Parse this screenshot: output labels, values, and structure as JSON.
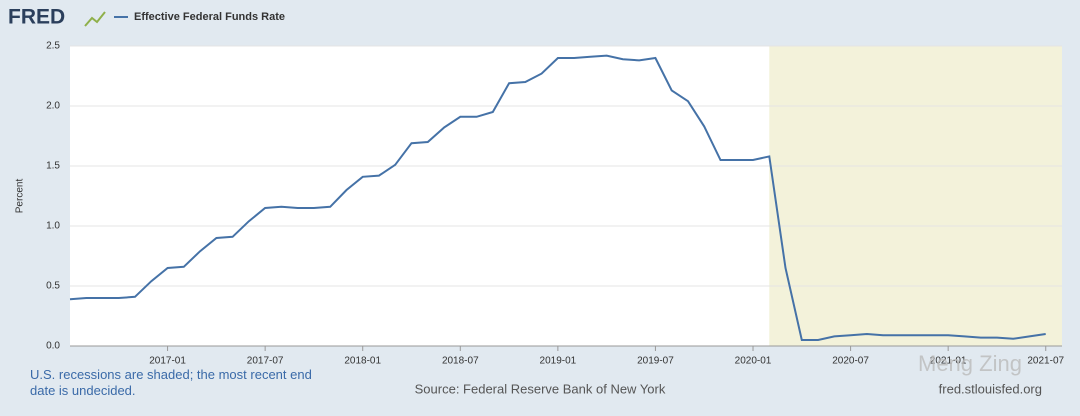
{
  "chart_data": {
    "type": "line",
    "logo": "FRED",
    "ylabel": "Percent",
    "note": "U.S. recessions are shaded; the most recent end date is undecided.",
    "source": "Source: Federal Reserve Bank of New York",
    "site": "fred.stlouisfed.org",
    "watermark": "Meng Zing",
    "x": [
      "2016-07",
      "2016-08",
      "2016-09",
      "2016-10",
      "2016-11",
      "2016-12",
      "2017-01",
      "2017-02",
      "2017-03",
      "2017-04",
      "2017-05",
      "2017-06",
      "2017-07",
      "2017-08",
      "2017-09",
      "2017-10",
      "2017-11",
      "2017-12",
      "2018-01",
      "2018-02",
      "2018-03",
      "2018-04",
      "2018-05",
      "2018-06",
      "2018-07",
      "2018-08",
      "2018-09",
      "2018-10",
      "2018-11",
      "2018-12",
      "2019-01",
      "2019-02",
      "2019-03",
      "2019-04",
      "2019-05",
      "2019-06",
      "2019-07",
      "2019-08",
      "2019-09",
      "2019-10",
      "2019-11",
      "2019-12",
      "2020-01",
      "2020-02",
      "2020-03",
      "2020-04",
      "2020-05",
      "2020-06",
      "2020-07",
      "2020-08",
      "2020-09",
      "2020-10",
      "2020-11",
      "2020-12",
      "2021-01",
      "2021-02",
      "2021-03",
      "2021-04",
      "2021-05",
      "2021-06",
      "2021-07"
    ],
    "series": [
      {
        "name": "Effective Federal Funds Rate",
        "color": "#4572a7",
        "values": [
          0.39,
          0.4,
          0.4,
          0.4,
          0.41,
          0.54,
          0.65,
          0.66,
          0.79,
          0.9,
          0.91,
          1.04,
          1.15,
          1.16,
          1.15,
          1.15,
          1.16,
          1.3,
          1.41,
          1.42,
          1.51,
          1.69,
          1.7,
          1.82,
          1.91,
          1.91,
          1.95,
          2.19,
          2.2,
          2.27,
          2.4,
          2.4,
          2.41,
          2.42,
          2.39,
          2.38,
          2.4,
          2.13,
          2.04,
          1.83,
          1.55,
          1.55,
          1.55,
          1.58,
          0.65,
          0.05,
          0.05,
          0.08,
          0.09,
          0.1,
          0.09,
          0.09,
          0.09,
          0.09,
          0.09,
          0.08,
          0.07,
          0.07,
          0.06,
          0.08,
          0.1
        ]
      }
    ],
    "xlim": [
      "2016-07",
      "2021-08"
    ],
    "xticks": [
      "2017-01",
      "2017-07",
      "2018-01",
      "2018-07",
      "2019-01",
      "2019-07",
      "2020-01",
      "2020-07",
      "2021-01",
      "2021-07"
    ],
    "ylim": [
      0,
      2.5
    ],
    "yticks": [
      {
        "value": 0,
        "label": "0.0"
      },
      0.5,
      {
        "value": 1,
        "label": "1.0"
      },
      1.5,
      {
        "value": 2,
        "label": "2.0"
      },
      2.5
    ],
    "grid": true,
    "recession_start": "2020-02",
    "recession_color": "#f3f2da"
  }
}
